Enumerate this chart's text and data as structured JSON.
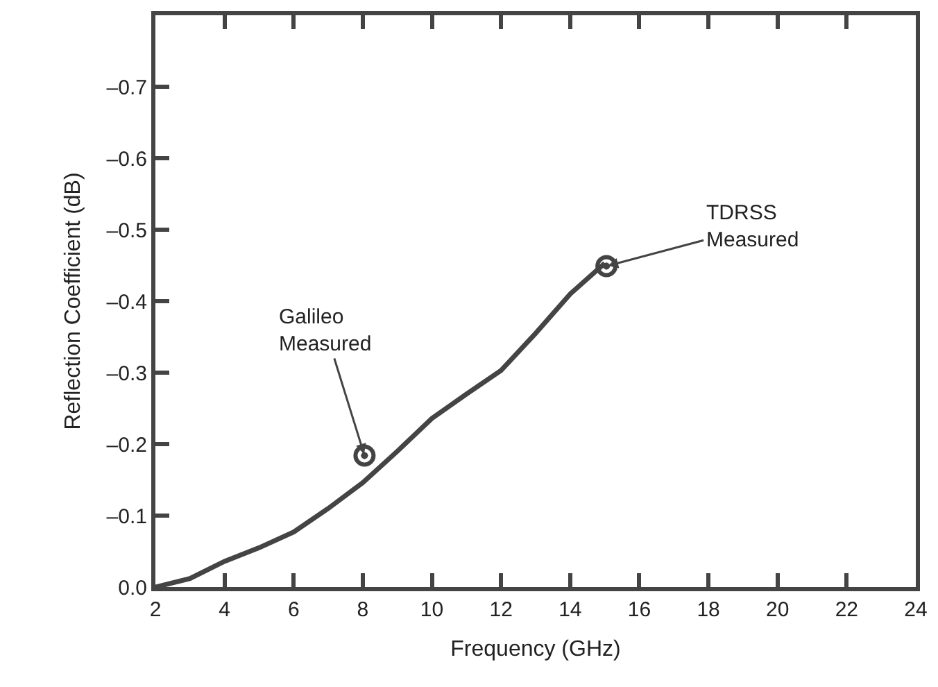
{
  "chart_data": {
    "type": "line",
    "xlabel": "Frequency (GHz)",
    "ylabel": "Reflection Coefficient (dB)",
    "x": [
      2,
      3,
      4,
      5,
      6,
      7,
      8,
      9,
      10,
      11,
      12,
      13,
      14,
      15
    ],
    "series": [
      {
        "color": "#444444",
        "values": [
          0,
          -0.012,
          -0.036,
          -0.055,
          -0.077,
          -0.11,
          -0.146,
          -0.19,
          -0.236,
          -0.27,
          -0.303,
          -0.355,
          -0.41,
          -0.453
        ]
      },
      {
        "type": "scatter",
        "color": "#444444",
        "x": [
          8.05,
          15.05
        ],
        "values": [
          -0.184,
          -0.449
        ],
        "marker": "circle"
      }
    ],
    "annotations": [
      {
        "text": "Galileo\nMeasured",
        "x": 8.05,
        "y": -0.184
      },
      {
        "text": "TDRSS\nMeasured",
        "x": 15.05,
        "y": -0.449
      }
    ],
    "xlim": [
      2,
      24
    ],
    "xticks": [
      2,
      4,
      6,
      8,
      10,
      12,
      14,
      16,
      18,
      20,
      22,
      24
    ],
    "ylim": [
      0,
      -0.8
    ],
    "yticks": [
      {
        "value": 0,
        "label": "0.0"
      },
      {
        "value": -0.1,
        "label": "–0.1"
      },
      {
        "value": -0.2,
        "label": "–0.2"
      },
      {
        "value": -0.3,
        "label": "–0.3"
      },
      {
        "value": -0.4,
        "label": "–0.4"
      },
      {
        "value": -0.5,
        "label": "–0.5"
      },
      {
        "value": -0.6,
        "label": "–0.6"
      },
      {
        "value": -0.7,
        "label": "–0.7"
      }
    ]
  }
}
